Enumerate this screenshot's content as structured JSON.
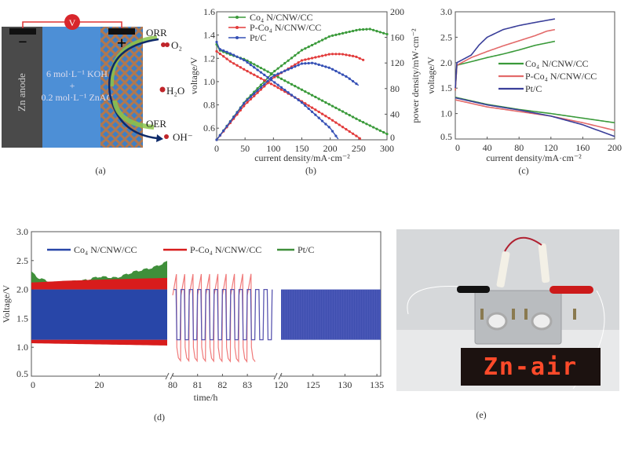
{
  "panel_labels": {
    "a": "(a)",
    "b": "(b)",
    "c": "(c)",
    "d": "(d)",
    "e": "(e)"
  },
  "colors": {
    "co4n": "#3a9a3a",
    "pco4n": "#e23b3b",
    "ptc": "#3550b5",
    "pt_d": "#3f8f3a",
    "co4n_d": "#2846a8",
    "pco4n_d": "#d81c1c"
  },
  "diagram": {
    "voltmeter": "V",
    "anode_label": "Zn anode",
    "electrolyte_line1": "6 mol·L⁻¹ KOH",
    "electrolyte_plus": "+",
    "electrolyte_line2": "0.2 mol·L⁻¹ ZnAC",
    "orr": "ORR",
    "oer": "OER",
    "o2": "O₂",
    "h2o": "H₂O",
    "oh": "OH⁻",
    "minus": "−",
    "plus": "+"
  },
  "chart_data": [
    {
      "id": "b",
      "type": "line",
      "xlabel": "current density/mA·cm⁻²",
      "ylabel": "voltage/V",
      "y2label": "power density/mW·cm⁻²",
      "xlim": [
        0,
        300
      ],
      "ylim": [
        0.5,
        1.6
      ],
      "y2lim": [
        0,
        200
      ],
      "xticks": [
        0,
        50,
        100,
        150,
        200,
        250,
        300
      ],
      "yticks": [
        "0.6",
        "0.8",
        "1.0",
        "1.2",
        "1.4",
        "1.6"
      ],
      "y2ticks": [
        0,
        40,
        80,
        120,
        160,
        200
      ],
      "legend": "top-left",
      "series": [
        {
          "name": "Co₄ N/CNW/CC",
          "color": "#3a9a3a",
          "voltage": [
            [
              0,
              1.32
            ],
            [
              5,
              1.27
            ],
            [
              25,
              1.23
            ],
            [
              50,
              1.19
            ],
            [
              100,
              1.06
            ],
            [
              150,
              0.93
            ],
            [
              200,
              0.8
            ],
            [
              250,
              0.67
            ],
            [
              300,
              0.55
            ]
          ],
          "power": [
            [
              0,
              0
            ],
            [
              50,
              60
            ],
            [
              100,
              106
            ],
            [
              150,
              140
            ],
            [
              200,
              162
            ],
            [
              250,
              172
            ],
            [
              270,
              173
            ],
            [
              300,
              165
            ]
          ]
        },
        {
          "name": "P-Co₄ N/CNW/CC",
          "color": "#e23b3b",
          "voltage": [
            [
              0,
              1.26
            ],
            [
              25,
              1.17
            ],
            [
              50,
              1.1
            ],
            [
              100,
              0.97
            ],
            [
              150,
              0.83
            ],
            [
              200,
              0.68
            ],
            [
              250,
              0.52
            ],
            [
              255,
              0.5
            ]
          ],
          "power": [
            [
              0,
              0
            ],
            [
              50,
              55
            ],
            [
              100,
              97
            ],
            [
              150,
              124
            ],
            [
              200,
              134
            ],
            [
              220,
              134
            ],
            [
              245,
              130
            ],
            [
              260,
              124
            ]
          ]
        },
        {
          "name": "Pt/C",
          "color": "#3550b5",
          "voltage": [
            [
              0,
              1.34
            ],
            [
              5,
              1.28
            ],
            [
              25,
              1.24
            ],
            [
              50,
              1.18
            ],
            [
              100,
              1.0
            ],
            [
              150,
              0.82
            ],
            [
              200,
              0.6
            ],
            [
              215,
              0.5
            ]
          ],
          "power": [
            [
              0,
              0
            ],
            [
              50,
              59
            ],
            [
              100,
              100
            ],
            [
              150,
              119
            ],
            [
              170,
              120
            ],
            [
              200,
              112
            ],
            [
              230,
              98
            ],
            [
              250,
              85
            ]
          ]
        }
      ]
    },
    {
      "id": "c",
      "type": "line",
      "xlabel": "current density/mA·cm⁻²",
      "ylabel": "voltage/V",
      "xlim": [
        0,
        200
      ],
      "ylim": [
        0.5,
        3.0
      ],
      "xticks": [
        0,
        40,
        80,
        120,
        160,
        200
      ],
      "yticks": [
        "0.5",
        "1.0",
        "1.5",
        "2.0",
        "2.5",
        "3.0"
      ],
      "legend": "center-right",
      "series": [
        {
          "name": "Co₄ N/CNW/CC",
          "color": "#3a9a3a",
          "charge": [
            [
              0,
              1.45
            ],
            [
              2,
              1.95
            ],
            [
              20,
              2.02
            ],
            [
              40,
              2.1
            ],
            [
              60,
              2.17
            ],
            [
              80,
              2.25
            ],
            [
              100,
              2.34
            ],
            [
              125,
              2.42
            ]
          ],
          "discharge": [
            [
              0,
              1.32
            ],
            [
              40,
              1.18
            ],
            [
              80,
              1.08
            ],
            [
              120,
              1.0
            ],
            [
              160,
              0.91
            ],
            [
              200,
              0.82
            ]
          ]
        },
        {
          "name": "P-Co₄ N/CNW/CC",
          "color": "#e36a6a",
          "charge": [
            [
              0,
              1.45
            ],
            [
              2,
              1.95
            ],
            [
              20,
              2.1
            ],
            [
              40,
              2.22
            ],
            [
              60,
              2.33
            ],
            [
              80,
              2.43
            ],
            [
              100,
              2.53
            ],
            [
              115,
              2.62
            ],
            [
              125,
              2.65
            ]
          ],
          "discharge": [
            [
              0,
              1.27
            ],
            [
              40,
              1.13
            ],
            [
              80,
              1.04
            ],
            [
              120,
              0.95
            ],
            [
              160,
              0.82
            ],
            [
              200,
              0.67
            ]
          ]
        },
        {
          "name": "Pt/C",
          "color": "#3a3f9a",
          "charge": [
            [
              0,
              1.5
            ],
            [
              2,
              2.0
            ],
            [
              20,
              2.15
            ],
            [
              30,
              2.35
            ],
            [
              40,
              2.5
            ],
            [
              60,
              2.65
            ],
            [
              80,
              2.73
            ],
            [
              100,
              2.79
            ],
            [
              125,
              2.86
            ]
          ],
          "discharge": [
            [
              0,
              1.31
            ],
            [
              40,
              1.17
            ],
            [
              80,
              1.07
            ],
            [
              120,
              0.95
            ],
            [
              160,
              0.78
            ],
            [
              200,
              0.55
            ]
          ]
        }
      ]
    },
    {
      "id": "d",
      "type": "line",
      "xlabel": "time/h",
      "ylabel": "Voltage/V",
      "ylim": [
        0.5,
        3.0
      ],
      "yticks": [
        "0.5",
        "1.0",
        "1.5",
        "2.0",
        "2.5",
        "3.0"
      ],
      "xticks": [
        0,
        20,
        80,
        81,
        82,
        83,
        120,
        125,
        130,
        135
      ],
      "axis_breaks": true,
      "legend": "top",
      "segments": [
        {
          "range": [
            0,
            40
          ],
          "xticks": [
            0,
            20
          ]
        },
        {
          "range": [
            80,
            84.1
          ],
          "xticks": [
            80,
            81,
            82,
            83
          ]
        },
        {
          "range": [
            120,
            135.6
          ],
          "xticks": [
            120,
            125,
            130,
            135
          ]
        }
      ],
      "series": [
        {
          "name": "Co₄ N/CNW/CC",
          "color": "#2846a8",
          "charge_v": 2.0,
          "discharge_v": 1.13,
          "end_h": 135.6
        },
        {
          "name": "P-Co₄ N/CNW/CC",
          "color": "#d81c1c",
          "charge_v": [
            [
              0,
              2.12
            ],
            [
              10,
              2.15
            ],
            [
              20,
              2.17
            ],
            [
              40,
              2.2
            ],
            [
              83.2,
              2.27
            ]
          ],
          "discharge_v": [
            [
              0,
              1.07
            ],
            [
              20,
              1.05
            ],
            [
              40,
              1.03
            ],
            [
              83.2,
              0.8
            ]
          ],
          "end_h": 83.3
        },
        {
          "name": "Pt/C",
          "color": "#3f8f3a",
          "charge_v": [
            [
              0,
              2.3
            ],
            [
              2,
              2.2
            ],
            [
              6,
              2.12
            ],
            [
              15,
              2.15
            ],
            [
              20,
              2.22
            ],
            [
              25,
              2.2
            ],
            [
              30,
              2.3
            ],
            [
              36,
              2.38
            ],
            [
              40,
              2.48
            ]
          ],
          "end_h": 40
        }
      ]
    }
  ],
  "photo": {
    "led_text": "Zn-air"
  }
}
